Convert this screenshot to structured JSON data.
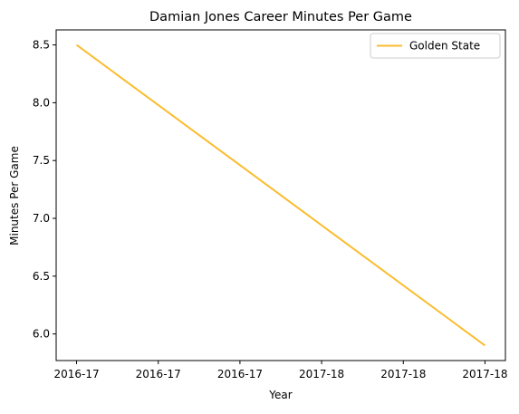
{
  "chart_data": {
    "type": "line",
    "title": "Damian Jones  Career Minutes Per Game",
    "xlabel": "Year",
    "ylabel": "Minutes Per Game",
    "x_tick_labels": [
      "2016-17",
      "2016-17",
      "2016-17",
      "2017-18",
      "2017-18",
      "2017-18"
    ],
    "x": [
      "2016-17",
      "2017-18"
    ],
    "xlim": [
      -0.05,
      1.05
    ],
    "x_tick_values": [
      0,
      0.2,
      0.4,
      0.6,
      0.8,
      1.0
    ],
    "series": [
      {
        "name": "Golden State",
        "color": "#fbbc2e",
        "x_values": [
          0,
          1
        ],
        "values": [
          8.5,
          5.9
        ]
      }
    ],
    "ylim": [
      5.77,
      8.63
    ],
    "y_ticks": [
      6.0,
      6.5,
      7.0,
      7.5,
      8.0,
      8.5
    ],
    "y_tick_labels": [
      "6.0",
      "6.5",
      "7.0",
      "7.5",
      "8.0",
      "8.5"
    ],
    "grid": false,
    "legend_position": "top-right"
  }
}
